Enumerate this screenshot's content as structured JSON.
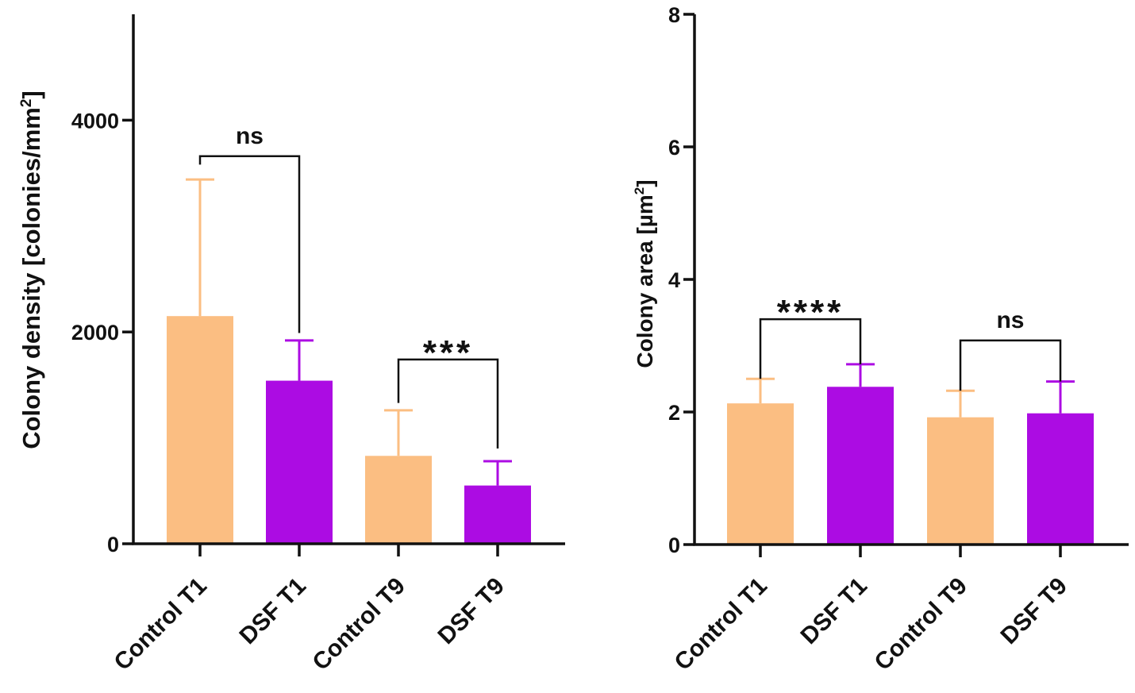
{
  "colors": {
    "control": "#FBBE82",
    "dsf": "#AC0CE3",
    "axis": "#111111"
  },
  "chart_data": [
    {
      "type": "bar",
      "ylabel": "Colony density [colonies/mm",
      "ylabel_sup": "2",
      "ylabel_close": "]",
      "ylim": [
        0,
        5000
      ],
      "yticks": [
        0,
        2000,
        4000
      ],
      "categories": [
        "Control T1",
        "DSF T1",
        "Control T9",
        "DSF T9"
      ],
      "values": [
        2150,
        1540,
        830,
        550
      ],
      "errors": [
        1290,
        380,
        430,
        230
      ],
      "bar_colors": [
        "control",
        "dsf",
        "control",
        "dsf"
      ],
      "brackets": [
        {
          "from": 0,
          "to": 1,
          "label": "ns",
          "y": 3660,
          "left_end": 3580,
          "right_end": 1990
        },
        {
          "from": 2,
          "to": 3,
          "label": "***",
          "y": 1740,
          "left_end": 1330,
          "right_end": 900
        }
      ]
    },
    {
      "type": "bar",
      "ylabel": "Colony area [µm",
      "ylabel_sup": "2",
      "ylabel_close": "]",
      "ylim": [
        0,
        8
      ],
      "yticks": [
        0,
        2,
        4,
        6,
        8
      ],
      "categories": [
        "Control T1",
        "DSF T1",
        "Control T9",
        "DSF T9"
      ],
      "values": [
        2.13,
        2.38,
        1.92,
        1.98
      ],
      "errors": [
        0.37,
        0.34,
        0.4,
        0.48
      ],
      "bar_colors": [
        "control",
        "dsf",
        "control",
        "dsf"
      ],
      "brackets": [
        {
          "from": 0,
          "to": 1,
          "label": "****",
          "y": 3.4,
          "left_end": 2.5,
          "right_end": 2.72
        },
        {
          "from": 2,
          "to": 3,
          "label": "ns",
          "y": 3.08,
          "left_end": 2.32,
          "right_end": 2.46
        }
      ]
    }
  ]
}
